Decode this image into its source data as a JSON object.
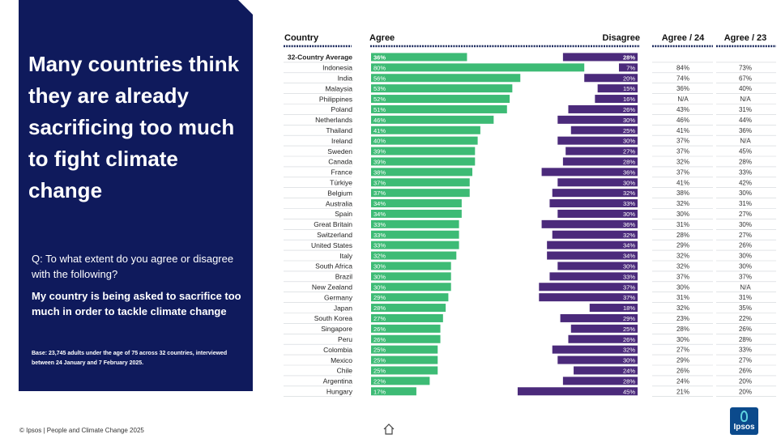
{
  "panel": {
    "headline": "Many countries think they are already sacrificing too much to fight climate change",
    "question": "Q: To what extent do you agree or disagree with the following?",
    "statement": "My country is being asked to sacrifice too much in order to tackle climate change",
    "base": "Base: 23,745 adults under the age of 75 across 32 countries, interviewed between 24 January and 7 February 2025.",
    "bg_color": "#0f1a5c"
  },
  "footer": {
    "copyright": "© Ipsos | People and Climate Change 2025",
    "logo_text": "Ipsos",
    "home_icon": "home-icon"
  },
  "colors": {
    "agree": "#3dbb75",
    "disagree": "#4b2a7b"
  },
  "chart_data": {
    "type": "bar",
    "subtype": "diverging-horizontal-bar-table",
    "headers": {
      "country": "Country",
      "agree": "Agree",
      "disagree": "Disagree",
      "agree24": "Agree / 24",
      "agree23": "Agree / 23"
    },
    "xlim": [
      0,
      100
    ],
    "unit": "%",
    "rows": [
      {
        "country": "32-Country Average",
        "agree": 36,
        "disagree": 28,
        "agree24": "",
        "agree23": "",
        "highlight": true
      },
      {
        "country": "Indonesia",
        "agree": 80,
        "disagree": 7,
        "agree24": "84%",
        "agree23": "73%"
      },
      {
        "country": "India",
        "agree": 56,
        "disagree": 20,
        "agree24": "74%",
        "agree23": "67%"
      },
      {
        "country": "Malaysia",
        "agree": 53,
        "disagree": 15,
        "agree24": "36%",
        "agree23": "40%"
      },
      {
        "country": "Philippines",
        "agree": 52,
        "disagree": 16,
        "agree24": "N/A",
        "agree23": "N/A"
      },
      {
        "country": "Poland",
        "agree": 51,
        "disagree": 26,
        "agree24": "43%",
        "agree23": "31%"
      },
      {
        "country": "Netherlands",
        "agree": 46,
        "disagree": 30,
        "agree24": "46%",
        "agree23": "44%"
      },
      {
        "country": "Thailand",
        "agree": 41,
        "disagree": 25,
        "agree24": "41%",
        "agree23": "36%"
      },
      {
        "country": "Ireland",
        "agree": 40,
        "disagree": 30,
        "agree24": "37%",
        "agree23": "N/A"
      },
      {
        "country": "Sweden",
        "agree": 39,
        "disagree": 27,
        "agree24": "37%",
        "agree23": "45%"
      },
      {
        "country": "Canada",
        "agree": 39,
        "disagree": 28,
        "agree24": "32%",
        "agree23": "28%"
      },
      {
        "country": "France",
        "agree": 38,
        "disagree": 36,
        "agree24": "37%",
        "agree23": "33%"
      },
      {
        "country": "Türkiye",
        "agree": 37,
        "disagree": 30,
        "agree24": "41%",
        "agree23": "42%"
      },
      {
        "country": "Belgium",
        "agree": 37,
        "disagree": 32,
        "agree24": "38%",
        "agree23": "30%"
      },
      {
        "country": "Australia",
        "agree": 34,
        "disagree": 33,
        "agree24": "32%",
        "agree23": "31%"
      },
      {
        "country": "Spain",
        "agree": 34,
        "disagree": 30,
        "agree24": "30%",
        "agree23": "27%"
      },
      {
        "country": "Great Britain",
        "agree": 33,
        "disagree": 36,
        "agree24": "31%",
        "agree23": "30%"
      },
      {
        "country": "Switzerland",
        "agree": 33,
        "disagree": 32,
        "agree24": "28%",
        "agree23": "27%"
      },
      {
        "country": "United States",
        "agree": 33,
        "disagree": 34,
        "agree24": "29%",
        "agree23": "26%"
      },
      {
        "country": "Italy",
        "agree": 32,
        "disagree": 34,
        "agree24": "32%",
        "agree23": "30%"
      },
      {
        "country": "South Africa",
        "agree": 30,
        "disagree": 30,
        "agree24": "32%",
        "agree23": "30%"
      },
      {
        "country": "Brazil",
        "agree": 30,
        "disagree": 33,
        "agree24": "37%",
        "agree23": "37%"
      },
      {
        "country": "New Zealand",
        "agree": 30,
        "disagree": 37,
        "agree24": "30%",
        "agree23": "N/A"
      },
      {
        "country": "Germany",
        "agree": 29,
        "disagree": 37,
        "agree24": "31%",
        "agree23": "31%"
      },
      {
        "country": "Japan",
        "agree": 28,
        "disagree": 18,
        "agree24": "32%",
        "agree23": "35%"
      },
      {
        "country": "South Korea",
        "agree": 27,
        "disagree": 29,
        "agree24": "23%",
        "agree23": "22%"
      },
      {
        "country": "Singapore",
        "agree": 26,
        "disagree": 25,
        "agree24": "28%",
        "agree23": "26%"
      },
      {
        "country": "Peru",
        "agree": 26,
        "disagree": 26,
        "agree24": "30%",
        "agree23": "28%"
      },
      {
        "country": "Colombia",
        "agree": 25,
        "disagree": 32,
        "agree24": "27%",
        "agree23": "33%"
      },
      {
        "country": "Mexico",
        "agree": 25,
        "disagree": 30,
        "agree24": "29%",
        "agree23": "27%"
      },
      {
        "country": "Chile",
        "agree": 25,
        "disagree": 24,
        "agree24": "26%",
        "agree23": "26%"
      },
      {
        "country": "Argentina",
        "agree": 22,
        "disagree": 28,
        "agree24": "24%",
        "agree23": "20%"
      },
      {
        "country": "Hungary",
        "agree": 17,
        "disagree": 45,
        "agree24": "21%",
        "agree23": "20%"
      }
    ]
  }
}
